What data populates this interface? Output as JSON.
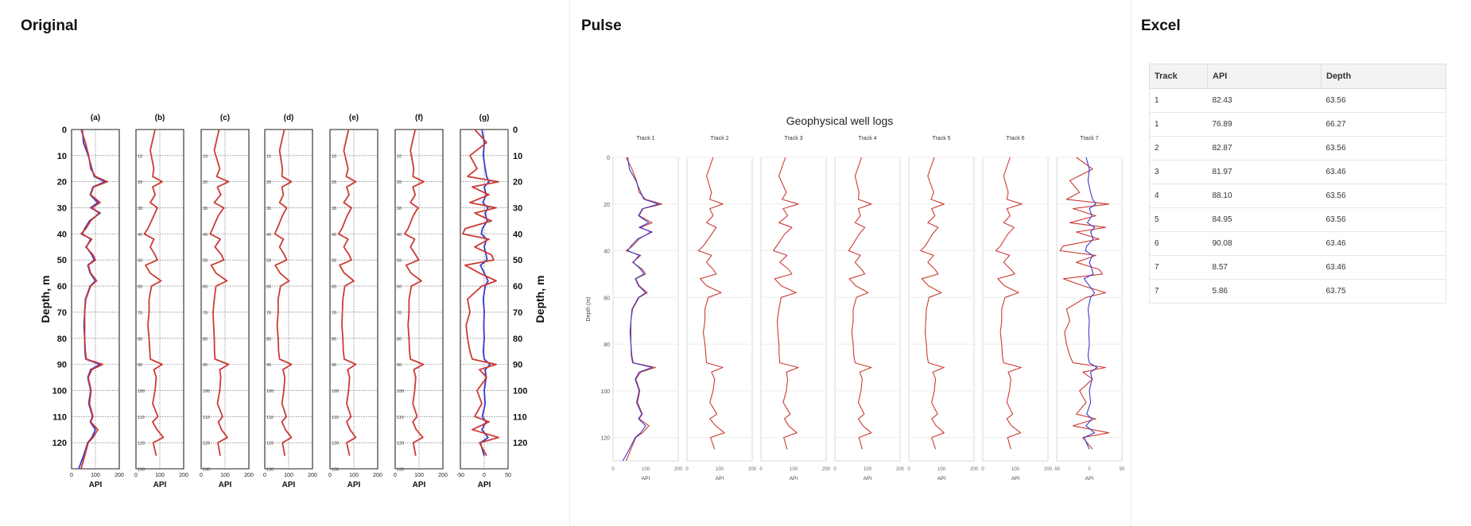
{
  "panels": {
    "original": "Original",
    "pulse": "Pulse",
    "excel": "Excel"
  },
  "original": {
    "track_labels": [
      "(a)",
      "(b)",
      "(c)",
      "(d)",
      "(e)",
      "(f)",
      "(g)"
    ],
    "ylabel": "Depth, m",
    "xlabel": "API",
    "y_ticks": [
      0,
      10,
      20,
      30,
      40,
      50,
      60,
      70,
      80,
      90,
      100,
      110,
      120,
      130
    ],
    "x_ticks": [
      [
        "0",
        "100",
        "200"
      ],
      [
        "0",
        "100",
        "200"
      ],
      [
        "0",
        "100",
        "200"
      ],
      [
        "0",
        "100",
        "200"
      ],
      [
        "0",
        "100",
        "200"
      ],
      [
        "0",
        "100",
        "200"
      ],
      [
        "-50",
        "0",
        "50"
      ]
    ]
  },
  "chart_data": {
    "type": "line",
    "title": "Geophysical well logs",
    "ylabel": "Depth (m)",
    "xlabel": "API",
    "ylim": [
      0,
      130
    ],
    "y_ticks": [
      0,
      20,
      40,
      60,
      80,
      100,
      120
    ],
    "grid": true,
    "tracks": [
      {
        "name": "Track 1",
        "xlim": [
          0,
          200
        ],
        "x_ticks": [
          "0",
          "100",
          "200"
        ],
        "series": [
          {
            "color": "#cc3b33",
            "depth": [
              0,
              5,
              10,
              15,
              18,
              20,
              22,
              25,
              28,
              30,
              32,
              35,
              38,
              40,
              42,
              45,
              48,
              50,
              52,
              55,
              58,
              60,
              65,
              70,
              75,
              80,
              85,
              88,
              90,
              92,
              95,
              100,
              105,
              110,
              112,
              115,
              118,
              120,
              125,
              130
            ],
            "api": [
              40,
              58,
              72,
              80,
              100,
              150,
              92,
              80,
              120,
              85,
              115,
              80,
              60,
              40,
              85,
              60,
              90,
              100,
              70,
              80,
              105,
              80,
              60,
              55,
              55,
              55,
              58,
              62,
              130,
              85,
              70,
              82,
              75,
              90,
              80,
              110,
              90,
              70,
              55,
              40
            ]
          },
          {
            "color": "#3a3acc",
            "depth": [
              0,
              5,
              10,
              15,
              18,
              20,
              22,
              25,
              28,
              30,
              32,
              35,
              38,
              40,
              42,
              45,
              48,
              50,
              52,
              55,
              58,
              60,
              65,
              70,
              75,
              80,
              85,
              88,
              90,
              92,
              95,
              100,
              105,
              110,
              112,
              115,
              118,
              120,
              125,
              130
            ],
            "api": [
              45,
              50,
              70,
              85,
              95,
              140,
              90,
              78,
              110,
              80,
              120,
              75,
              55,
              45,
              80,
              62,
              85,
              95,
              68,
              78,
              100,
              78,
              58,
              55,
              52,
              55,
              56,
              60,
              120,
              80,
              68,
              80,
              72,
              88,
              78,
              100,
              85,
              68,
              50,
              30
            ]
          }
        ]
      },
      {
        "name": "Track 2",
        "xlim": [
          0,
          200
        ],
        "x_ticks": [
          "0",
          "100",
          "200"
        ],
        "series": [
          {
            "color": "#cc3b33",
            "depth": [
              0,
              8,
              15,
              18,
              20,
              22,
              25,
              28,
              30,
              33,
              38,
              40,
              42,
              45,
              48,
              50,
              52,
              55,
              58,
              60,
              65,
              70,
              75,
              80,
              85,
              88,
              90,
              92,
              95,
              100,
              105,
              110,
              112,
              115,
              118,
              120,
              125
            ],
            "api": [
              80,
              60,
              75,
              70,
              110,
              70,
              80,
              60,
              90,
              75,
              50,
              35,
              75,
              60,
              80,
              90,
              40,
              60,
              105,
              65,
              55,
              55,
              50,
              55,
              58,
              60,
              110,
              75,
              85,
              80,
              70,
              92,
              70,
              88,
              115,
              72,
              85
            ]
          }
        ]
      },
      {
        "name": "Track 3",
        "xlim": [
          0,
          200
        ],
        "x_ticks": [
          "0",
          "100",
          "200"
        ],
        "series": [
          {
            "color": "#cc3b33",
            "depth": [
              0,
              8,
              15,
              18,
              20,
              22,
              25,
              28,
              30,
              33,
              38,
              40,
              42,
              45,
              48,
              50,
              52,
              55,
              58,
              60,
              65,
              70,
              75,
              80,
              85,
              88,
              90,
              92,
              95,
              100,
              105,
              110,
              112,
              115,
              118,
              120,
              125
            ],
            "api": [
              75,
              55,
              78,
              65,
              115,
              68,
              82,
              55,
              95,
              72,
              48,
              38,
              80,
              58,
              85,
              95,
              42,
              62,
              108,
              62,
              55,
              50,
              52,
              55,
              56,
              58,
              115,
              78,
              82,
              78,
              68,
              90,
              72,
              85,
              110,
              70,
              80
            ]
          }
        ]
      },
      {
        "name": "Track 4",
        "xlim": [
          0,
          200
        ],
        "x_ticks": [
          "0",
          "100",
          "200"
        ],
        "series": [
          {
            "color": "#cc3b33",
            "depth": [
              0,
              8,
              15,
              18,
              20,
              22,
              25,
              28,
              30,
              33,
              38,
              40,
              42,
              45,
              48,
              50,
              52,
              55,
              58,
              60,
              65,
              70,
              75,
              80,
              85,
              88,
              90,
              92,
              95,
              100,
              105,
              110,
              112,
              115,
              118,
              120,
              125
            ],
            "api": [
              82,
              62,
              74,
              72,
              112,
              72,
              78,
              62,
              92,
              74,
              52,
              42,
              78,
              62,
              82,
              92,
              44,
              64,
              102,
              66,
              56,
              56,
              52,
              56,
              58,
              62,
              112,
              76,
              84,
              80,
              72,
              90,
              72,
              86,
              112,
              74,
              84
            ]
          }
        ]
      },
      {
        "name": "Track 5",
        "xlim": [
          0,
          200
        ],
        "x_ticks": [
          "0",
          "100",
          "200"
        ],
        "series": [
          {
            "color": "#cc3b33",
            "depth": [
              0,
              8,
              15,
              18,
              20,
              22,
              25,
              28,
              30,
              33,
              38,
              40,
              42,
              45,
              48,
              50,
              52,
              55,
              58,
              60,
              65,
              70,
              75,
              80,
              85,
              88,
              90,
              92,
              95,
              100,
              105,
              110,
              112,
              115,
              118,
              120,
              125
            ],
            "api": [
              78,
              58,
              76,
              68,
              108,
              70,
              80,
              58,
              90,
              72,
              50,
              36,
              76,
              58,
              80,
              90,
              40,
              60,
              100,
              62,
              54,
              52,
              50,
              54,
              56,
              60,
              108,
              74,
              82,
              78,
              70,
              88,
              70,
              84,
              108,
              70,
              82
            ]
          }
        ]
      },
      {
        "name": "Track 6",
        "xlim": [
          0,
          200
        ],
        "x_ticks": [
          "0",
          "100",
          "200"
        ],
        "series": [
          {
            "color": "#cc3b33",
            "depth": [
              0,
              8,
              15,
              18,
              20,
              22,
              25,
              28,
              30,
              33,
              38,
              40,
              42,
              45,
              48,
              50,
              52,
              55,
              58,
              60,
              65,
              70,
              75,
              80,
              85,
              88,
              90,
              92,
              95,
              100,
              105,
              110,
              112,
              115,
              118,
              120,
              125
            ],
            "api": [
              84,
              64,
              78,
              74,
              120,
              74,
              84,
              64,
              96,
              76,
              54,
              40,
              82,
              64,
              86,
              98,
              46,
              66,
              110,
              68,
              58,
              58,
              54,
              58,
              60,
              64,
              118,
              78,
              86,
              82,
              74,
              92,
              74,
              88,
              116,
              76,
              86
            ]
          }
        ]
      },
      {
        "name": "Track 7",
        "xlim": [
          -50,
          50
        ],
        "x_ticks": [
          "-50",
          "0",
          "50"
        ],
        "series": [
          {
            "color": "#cc3b33",
            "depth": [
              0,
              5,
              10,
              15,
              18,
              20,
              22,
              25,
              28,
              30,
              32,
              35,
              38,
              40,
              42,
              45,
              48,
              50,
              52,
              55,
              58,
              60,
              65,
              70,
              75,
              80,
              85,
              88,
              90,
              92,
              95,
              100,
              105,
              110,
              112,
              115,
              118,
              120,
              125
            ],
            "api": [
              -20,
              5,
              -30,
              -15,
              -35,
              30,
              -25,
              10,
              -30,
              25,
              -20,
              15,
              -40,
              -45,
              10,
              -20,
              15,
              20,
              -40,
              -10,
              25,
              -5,
              -35,
              -30,
              -38,
              -35,
              -30,
              -25,
              25,
              -10,
              5,
              -15,
              -5,
              -20,
              10,
              -25,
              30,
              -10,
              5
            ]
          },
          {
            "color": "#3a3acc",
            "depth": [
              0,
              5,
              10,
              15,
              18,
              20,
              22,
              25,
              28,
              30,
              32,
              35,
              38,
              40,
              42,
              45,
              48,
              50,
              52,
              55,
              58,
              60,
              65,
              70,
              75,
              80,
              85,
              88,
              90,
              92,
              95,
              100,
              105,
              110,
              112,
              115,
              118,
              120,
              125
            ],
            "api": [
              -5,
              0,
              -2,
              2,
              5,
              10,
              0,
              4,
              -3,
              8,
              2,
              6,
              -4,
              -6,
              5,
              0,
              4,
              6,
              -8,
              0,
              8,
              2,
              -2,
              0,
              -1,
              0,
              -2,
              0,
              12,
              2,
              4,
              0,
              2,
              -4,
              4,
              -5,
              8,
              -8,
              0
            ]
          }
        ]
      }
    ]
  },
  "excel": {
    "headers": [
      "Track",
      "API",
      "Depth"
    ],
    "rows": [
      [
        "1",
        "82.43",
        "63.56"
      ],
      [
        "1",
        "76.89",
        "66.27"
      ],
      [
        "2",
        "82.87",
        "63.56"
      ],
      [
        "3",
        "81.97",
        "63.46"
      ],
      [
        "4",
        "88.10",
        "63.56"
      ],
      [
        "5",
        "84.95",
        "63.56"
      ],
      [
        "6",
        "90.08",
        "63.46"
      ],
      [
        "7",
        "8.57",
        "63.46"
      ],
      [
        "7",
        "5.86",
        "63.75"
      ]
    ]
  }
}
